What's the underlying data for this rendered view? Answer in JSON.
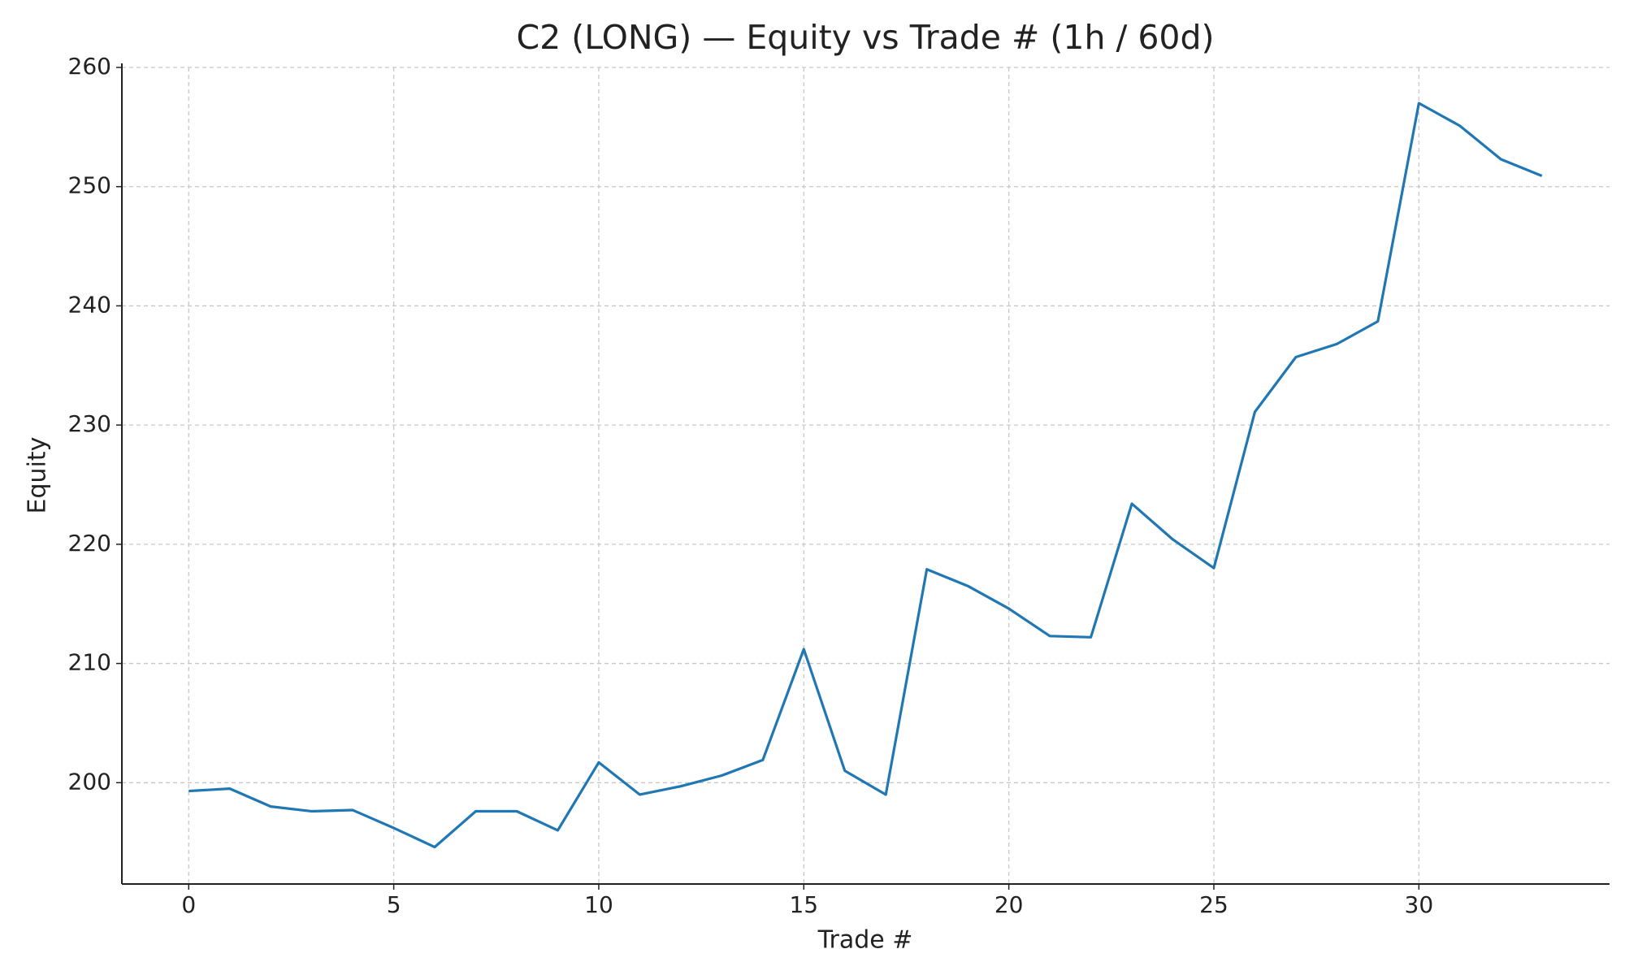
{
  "chart_data": {
    "type": "line",
    "title": "C2 (LONG) — Equity vs Trade # (1h / 60d)",
    "x_label": "Trade #",
    "y_label": "Equity",
    "x": [
      0,
      1,
      2,
      3,
      4,
      5,
      6,
      7,
      8,
      9,
      10,
      11,
      12,
      13,
      14,
      15,
      16,
      17,
      18,
      19,
      20,
      21,
      22,
      23,
      24,
      25,
      26,
      27,
      28,
      29,
      30,
      31,
      32,
      33
    ],
    "series": [
      {
        "name": "Equity",
        "color": "#1f77b4",
        "values": [
          199.3,
          199.5,
          198.0,
          197.6,
          197.7,
          196.2,
          194.6,
          197.6,
          197.6,
          196.0,
          201.7,
          199.0,
          199.7,
          200.6,
          201.9,
          211.2,
          201.0,
          199.0,
          217.9,
          216.5,
          214.6,
          212.3,
          212.2,
          223.4,
          220.4,
          218.0,
          231.1,
          235.7,
          236.8,
          238.7,
          257.0,
          255.1,
          252.3,
          250.9
        ]
      }
    ],
    "xlim": [
      -1.63,
      34.65
    ],
    "xticks": [
      0,
      5,
      10,
      15,
      20,
      25,
      30
    ],
    "ylim": [
      191.5,
      260
    ],
    "yticks": [
      200,
      210,
      220,
      230,
      240,
      250,
      260
    ],
    "grid": true
  }
}
